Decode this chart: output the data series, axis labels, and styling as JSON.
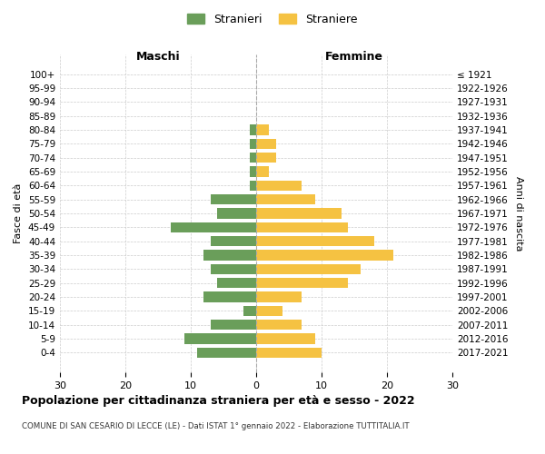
{
  "age_groups": [
    "100+",
    "95-99",
    "90-94",
    "85-89",
    "80-84",
    "75-79",
    "70-74",
    "65-69",
    "60-64",
    "55-59",
    "50-54",
    "45-49",
    "40-44",
    "35-39",
    "30-34",
    "25-29",
    "20-24",
    "15-19",
    "10-14",
    "5-9",
    "0-4"
  ],
  "birth_years": [
    "≤ 1921",
    "1922-1926",
    "1927-1931",
    "1932-1936",
    "1937-1941",
    "1942-1946",
    "1947-1951",
    "1952-1956",
    "1957-1961",
    "1962-1966",
    "1967-1971",
    "1972-1976",
    "1977-1981",
    "1982-1986",
    "1987-1991",
    "1992-1996",
    "1997-2001",
    "2002-2006",
    "2007-2011",
    "2012-2016",
    "2017-2021"
  ],
  "maschi": [
    0,
    0,
    0,
    0,
    1,
    1,
    1,
    1,
    1,
    7,
    6,
    13,
    7,
    8,
    7,
    6,
    8,
    2,
    7,
    11,
    9
  ],
  "femmine": [
    0,
    0,
    0,
    0,
    2,
    3,
    3,
    2,
    7,
    9,
    13,
    14,
    18,
    21,
    16,
    14,
    7,
    4,
    7,
    9,
    10
  ],
  "male_color": "#6a9e5a",
  "female_color": "#f5c242",
  "background_color": "#ffffff",
  "grid_color": "#cccccc",
  "title": "Popolazione per cittadinanza straniera per età e sesso - 2022",
  "subtitle": "COMUNE DI SAN CESARIO DI LECCE (LE) - Dati ISTAT 1° gennaio 2022 - Elaborazione TUTTITALIA.IT",
  "legend_male": "Stranieri",
  "legend_female": "Straniere",
  "left_label": "Maschi",
  "right_label": "Femmine",
  "ylabel": "Fasce di età",
  "right_ylabel": "Anni di nascita",
  "xlim": 30
}
